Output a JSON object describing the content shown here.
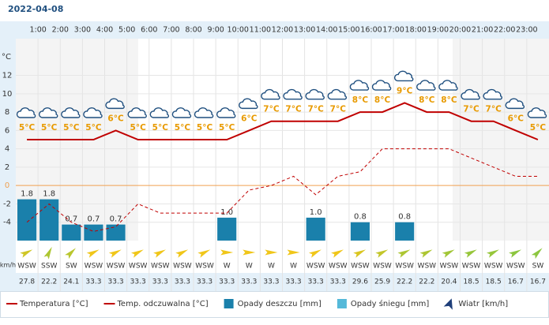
{
  "chart_data": {
    "type": "line",
    "title": "2022-04-08",
    "hour_labels": [
      "1:00",
      "2:00",
      "3:00",
      "4:00",
      "5:00",
      "6:00",
      "7:00",
      "8:00",
      "9:00",
      "10:00",
      "11:00",
      "12:00",
      "13:00",
      "14:00",
      "15:00",
      "16:00",
      "17:00",
      "18:00",
      "19:00",
      "20:00",
      "21:00",
      "22:00",
      "23:00"
    ],
    "y_label": "°C",
    "ylim": [
      -6,
      16
    ],
    "yticks": [
      -4,
      -2,
      0,
      2,
      4,
      6,
      8,
      10,
      12
    ],
    "y2lim": [
      0,
      8.8
    ],
    "grid": true,
    "zero_color": "#f0a050",
    "series": [
      {
        "name": "Temperatura [°C]",
        "color": "#c00000",
        "values": [
          5,
          5,
          5,
          5,
          6,
          5,
          5,
          5,
          5,
          5,
          6,
          7,
          7,
          7,
          7,
          8,
          8,
          9,
          8,
          8,
          7,
          7,
          6,
          5
        ],
        "value_labels": [
          "5°C",
          "5°C",
          "5°C",
          "5°C",
          "6°C",
          "5°C",
          "5°C",
          "5°C",
          "5°C",
          "5°C",
          "6°C",
          "7°C",
          "7°C",
          "7°C",
          "7°C",
          "8°C",
          "8°C",
          "9°C",
          "8°C",
          "8°C",
          "7°C",
          "7°C",
          "6°C",
          "5°C"
        ]
      },
      {
        "name": "Temp. odczuwalna [°C]",
        "color": "#c00000",
        "dashed": true,
        "values": [
          -4,
          -2,
          -4,
          -5,
          -4.5,
          -2,
          -3,
          -3,
          -3,
          -3,
          -0.5,
          0,
          1,
          -1,
          1,
          1.5,
          4,
          4,
          4,
          4,
          3,
          2,
          1,
          1
        ]
      },
      {
        "name": "Opady deszczu [mm]",
        "type": "bar",
        "axis": "y2",
        "color": "#1a80ab",
        "values": [
          1.8,
          1.8,
          0.7,
          0.7,
          0.7,
          null,
          null,
          null,
          null,
          1.0,
          null,
          null,
          null,
          1.0,
          null,
          0.8,
          null,
          0.8,
          null,
          null,
          null,
          null,
          null,
          null
        ],
        "value_labels": [
          "1.8",
          "1.8",
          "0.7",
          "0.7",
          "0.7",
          null,
          null,
          null,
          null,
          "1.0",
          null,
          null,
          null,
          "1.0",
          null,
          "0.8",
          null,
          "0.8",
          null,
          null,
          null,
          null,
          null,
          null
        ]
      },
      {
        "name": "Opady śniegu [mm]",
        "type": "bar",
        "axis": "y2",
        "color": "#55b9d9",
        "values": [
          null,
          null,
          null,
          null,
          null,
          null,
          null,
          null,
          null,
          null,
          null,
          null,
          null,
          null,
          null,
          null,
          null,
          null,
          null,
          null,
          null,
          null,
          null,
          null
        ]
      }
    ],
    "wind": {
      "name": "Wiatr [km/h]",
      "label": "km/h",
      "color": "#1f3f7a",
      "directions": [
        "WSW",
        "SSW",
        "SW",
        "WSW",
        "WSW",
        "WSW",
        "WSW",
        "WSW",
        "WSW",
        "W",
        "W",
        "W",
        "W",
        "WSW",
        "WSW",
        "WSW",
        "WSW",
        "WSW",
        "WSW",
        "WSW",
        "WSW",
        "WSW",
        "WSW",
        "SW"
      ],
      "speeds": [
        27.8,
        22.2,
        24.1,
        33.3,
        33.3,
        33.3,
        33.3,
        33.3,
        33.3,
        33.3,
        33.3,
        33.3,
        33.3,
        33.3,
        33.3,
        29.6,
        25.9,
        22.2,
        22.2,
        20.4,
        18.5,
        18.5,
        16.7,
        16.7
      ]
    }
  }
}
